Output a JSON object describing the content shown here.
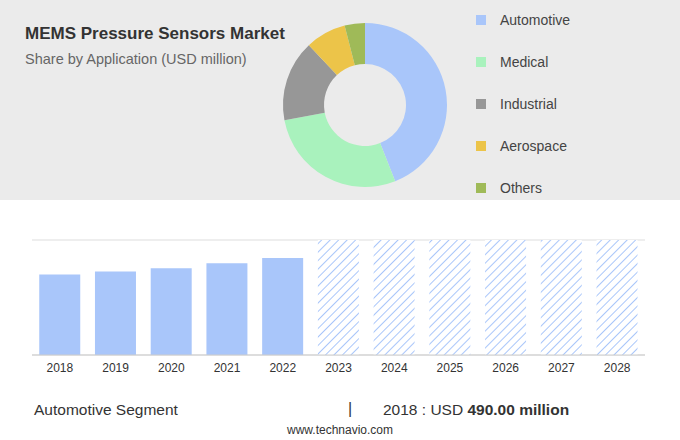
{
  "chart_data": [
    {
      "type": "pie",
      "title": "MEMS Pressure Sensors Market",
      "subtitle": "Share by Application (USD million)",
      "categories": [
        "Automotive",
        "Medical",
        "Industrial",
        "Aerospace",
        "Others"
      ],
      "values": [
        44,
        28,
        16,
        8,
        4
      ],
      "colors": [
        "#a9c6fa",
        "#a9f2bd",
        "#979797",
        "#ecc449",
        "#9fba58"
      ],
      "legend": "right"
    },
    {
      "type": "bar",
      "categories": [
        "2018",
        "2019",
        "2020",
        "2021",
        "2022",
        "2023",
        "2024",
        "2025",
        "2026",
        "2027",
        "2028"
      ],
      "values": [
        490,
        509,
        528,
        559,
        591,
        null,
        null,
        null,
        null,
        null,
        null
      ],
      "forecast": [
        null,
        null,
        null,
        null,
        null,
        700,
        700,
        700,
        700,
        700,
        700
      ],
      "color": "#a9c6fa",
      "ylim": [
        0,
        700
      ],
      "yticks": [
        0,
        100,
        200,
        300,
        400,
        500,
        600,
        700
      ],
      "grid": true,
      "tick_labels": "x"
    }
  ],
  "footer": {
    "segment": "Automotive Segment",
    "separator": "|",
    "year_label": "2018 : USD",
    "value_label": "490.00 million",
    "source": "www.technavio.com"
  }
}
